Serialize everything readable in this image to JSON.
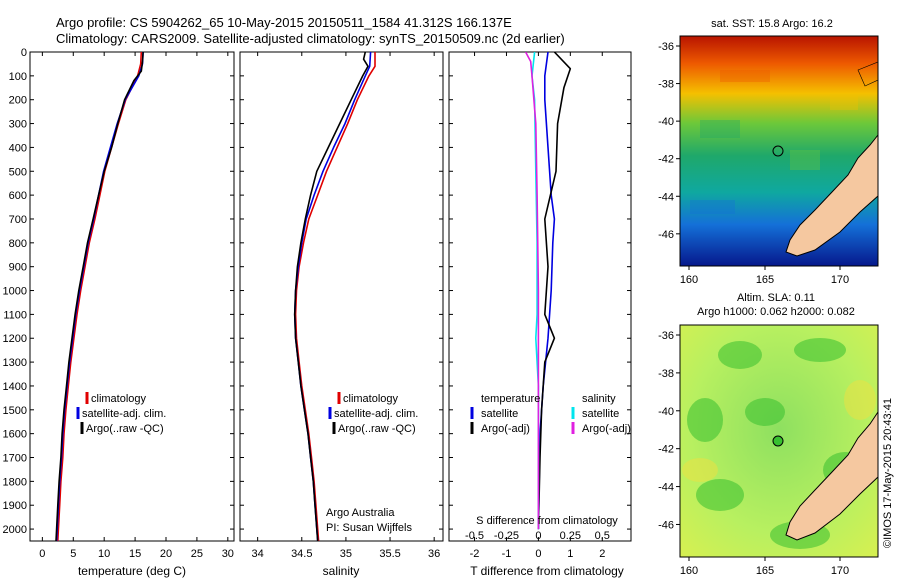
{
  "header": {
    "title_line1": "Argo profile: CS 5904262_65 10-May-2015 20150511_1584 41.312S 166.137E",
    "title_line2": "Climatology: CARS2009. Satellite-adjusted climatology: synTS_20150509.nc (2d earlier)"
  },
  "colors": {
    "climatology": "#e00000",
    "satellite": "#0000e0",
    "argo": "#000000",
    "sal_satellite": "#00e5ee",
    "sal_argo": "#e020e0"
  },
  "depth_axis": {
    "range": [
      0,
      2050
    ],
    "ticks": [
      "0",
      "100",
      "200",
      "300",
      "400",
      "500",
      "600",
      "700",
      "800",
      "900",
      "1000",
      "1100",
      "1200",
      "1300",
      "1400",
      "1500",
      "1600",
      "1700",
      "1800",
      "1900",
      "2000"
    ]
  },
  "panel_temp": {
    "xlabel": "temperature (deg C)",
    "ticks": [
      "0",
      "5",
      "10",
      "15",
      "20",
      "25",
      "30"
    ],
    "legend": [
      "climatology",
      "satellite-adj. clim.",
      "Argo(..raw -QC)"
    ]
  },
  "panel_sal": {
    "xlabel": "salinity",
    "ticks": [
      "34",
      "34.5",
      "35",
      "35.5",
      "36"
    ],
    "legend": [
      "climatology",
      "satellite-adj. clim.",
      "Argo(..raw -QC)"
    ],
    "note1": "Argo Australia",
    "note2": "PI: Susan Wijffels"
  },
  "panel_diff": {
    "top_label": "S difference from climatology",
    "s_ticks": [
      "-0.5",
      "-0.25",
      "0",
      "0.25",
      "0.5"
    ],
    "bottom_label": "T difference from climatology",
    "t_ticks": [
      "-2",
      "-1",
      "0",
      "1",
      "2"
    ],
    "legend_temp_title": "temperature",
    "legend_temp": [
      "satellite",
      "Argo(-adj)"
    ],
    "legend_sal_title": "salinity",
    "legend_sal": [
      "satellite",
      "Argo(-adj)"
    ]
  },
  "map_sst": {
    "title": "sat. SST: 15.8 Argo: 16.2",
    "lat_ticks": [
      "-36",
      "-38",
      "-40",
      "-42",
      "-44",
      "-46"
    ],
    "lon_ticks": [
      "160",
      "165",
      "170"
    ]
  },
  "map_sla": {
    "title1": "Altim. SLA: 0.11",
    "title2": "Argo h1000: 0.062 h2000: 0.082",
    "lat_ticks": [
      "-36",
      "-38",
      "-40",
      "-42",
      "-44",
      "-46"
    ],
    "lon_ticks": [
      "160",
      "165",
      "170"
    ]
  },
  "credit": "©IMOS 17-May-2015 20:43:41",
  "chart_data": [
    {
      "type": "line",
      "title": "",
      "xlabel": "temperature (deg C)",
      "ylabel": "",
      "xlim": [
        -2,
        31
      ],
      "ylim": [
        2050,
        0
      ],
      "series": [
        {
          "name": "climatology",
          "points": [
            [
              16,
              0
            ],
            [
              15.9,
              50
            ],
            [
              15.4,
              100
            ],
            [
              13.5,
              200
            ],
            [
              12.3,
              300
            ],
            [
              11.2,
              400
            ],
            [
              10.1,
              500
            ],
            [
              9.3,
              600
            ],
            [
              8.5,
              700
            ],
            [
              7.6,
              800
            ],
            [
              6.9,
              900
            ],
            [
              6.2,
              1000
            ],
            [
              5.6,
              1100
            ],
            [
              5.1,
              1200
            ],
            [
              4.6,
              1300
            ],
            [
              4.2,
              1400
            ],
            [
              3.8,
              1500
            ],
            [
              3.5,
              1600
            ],
            [
              3.3,
              1700
            ],
            [
              3.0,
              1800
            ],
            [
              2.8,
              1900
            ],
            [
              2.6,
              2000
            ],
            [
              2.5,
              2050
            ]
          ]
        },
        {
          "name": "satellite-adj. clim.",
          "points": [
            [
              16.3,
              0
            ],
            [
              16.2,
              50
            ],
            [
              15.6,
              100
            ],
            [
              13.4,
              200
            ],
            [
              12.1,
              300
            ],
            [
              11.0,
              400
            ],
            [
              9.9,
              500
            ],
            [
              9.1,
              600
            ],
            [
              8.3,
              700
            ],
            [
              7.4,
              800
            ],
            [
              6.7,
              900
            ],
            [
              6.0,
              1000
            ],
            [
              5.4,
              1100
            ],
            [
              4.9,
              1200
            ],
            [
              4.4,
              1300
            ],
            [
              4.0,
              1400
            ],
            [
              3.6,
              1500
            ],
            [
              3.3,
              1600
            ],
            [
              3.1,
              1700
            ],
            [
              2.8,
              1800
            ],
            [
              2.6,
              1900
            ],
            [
              2.4,
              2000
            ],
            [
              2.3,
              2050
            ]
          ]
        },
        {
          "name": "Argo(..raw -QC)",
          "points": [
            [
              16.3,
              0
            ],
            [
              16.2,
              40
            ],
            [
              16.0,
              80
            ],
            [
              14.8,
              120
            ],
            [
              13.3,
              200
            ],
            [
              12.2,
              300
            ],
            [
              11.2,
              400
            ],
            [
              10.0,
              500
            ],
            [
              9.1,
              600
            ],
            [
              8.2,
              700
            ],
            [
              7.3,
              800
            ],
            [
              6.6,
              900
            ],
            [
              5.9,
              1000
            ],
            [
              5.3,
              1100
            ],
            [
              4.8,
              1200
            ],
            [
              4.3,
              1300
            ],
            [
              3.9,
              1400
            ],
            [
              3.5,
              1500
            ],
            [
              3.2,
              1600
            ],
            [
              3.0,
              1700
            ],
            [
              2.7,
              1800
            ],
            [
              2.5,
              1900
            ],
            [
              2.3,
              2000
            ],
            [
              2.2,
              2050
            ]
          ]
        }
      ]
    },
    {
      "type": "line",
      "title": "",
      "xlabel": "salinity",
      "ylabel": "",
      "xlim": [
        33.8,
        36.1
      ],
      "ylim": [
        2050,
        0
      ],
      "series": [
        {
          "name": "climatology",
          "points": [
            [
              35.33,
              0
            ],
            [
              35.33,
              60
            ],
            [
              35.26,
              100
            ],
            [
              35.13,
              200
            ],
            [
              35.02,
              300
            ],
            [
              34.9,
              400
            ],
            [
              34.78,
              500
            ],
            [
              34.68,
              600
            ],
            [
              34.58,
              700
            ],
            [
              34.52,
              800
            ],
            [
              34.47,
              900
            ],
            [
              34.44,
              1000
            ],
            [
              34.43,
              1100
            ],
            [
              34.44,
              1200
            ],
            [
              34.47,
              1300
            ],
            [
              34.5,
              1400
            ],
            [
              34.54,
              1500
            ],
            [
              34.58,
              1600
            ],
            [
              34.61,
              1700
            ],
            [
              34.64,
              1800
            ],
            [
              34.66,
              1900
            ],
            [
              34.68,
              2000
            ],
            [
              34.69,
              2050
            ]
          ]
        },
        {
          "name": "satellite-adj. clim.",
          "points": [
            [
              35.28,
              0
            ],
            [
              35.27,
              60
            ],
            [
              35.22,
              100
            ],
            [
              35.1,
              200
            ],
            [
              34.99,
              300
            ],
            [
              34.86,
              400
            ],
            [
              34.74,
              500
            ],
            [
              34.64,
              600
            ],
            [
              34.55,
              700
            ],
            [
              34.5,
              800
            ],
            [
              34.46,
              900
            ],
            [
              34.43,
              1000
            ],
            [
              34.42,
              1100
            ],
            [
              34.43,
              1200
            ],
            [
              34.46,
              1300
            ],
            [
              34.49,
              1400
            ],
            [
              34.53,
              1500
            ],
            [
              34.57,
              1600
            ],
            [
              34.6,
              1700
            ],
            [
              34.63,
              1800
            ],
            [
              34.65,
              1900
            ],
            [
              34.67,
              2000
            ],
            [
              34.68,
              2050
            ]
          ]
        },
        {
          "name": "Argo(..raw -QC)",
          "points": [
            [
              35.22,
              0
            ],
            [
              35.2,
              30
            ],
            [
              35.25,
              60
            ],
            [
              35.19,
              100
            ],
            [
              35.06,
              200
            ],
            [
              34.93,
              300
            ],
            [
              34.8,
              400
            ],
            [
              34.67,
              500
            ],
            [
              34.6,
              600
            ],
            [
              34.54,
              700
            ],
            [
              34.49,
              800
            ],
            [
              34.45,
              900
            ],
            [
              34.43,
              1000
            ],
            [
              34.42,
              1100
            ],
            [
              34.43,
              1200
            ],
            [
              34.46,
              1300
            ],
            [
              34.49,
              1400
            ],
            [
              34.53,
              1500
            ],
            [
              34.57,
              1600
            ],
            [
              34.6,
              1700
            ],
            [
              34.63,
              1800
            ],
            [
              34.65,
              1900
            ],
            [
              34.67,
              2000
            ],
            [
              34.68,
              2050
            ]
          ]
        }
      ]
    },
    {
      "type": "line",
      "title": "",
      "xlabel": "T difference from climatology",
      "x2label": "S difference from climatology",
      "ylabel": "",
      "xlim": [
        -2.8,
        2.9
      ],
      "ylim": [
        2050,
        0
      ],
      "series": [
        {
          "name": "temperature satellite",
          "axis": "T",
          "points": [
            [
              0.3,
              0
            ],
            [
              0.2,
              100
            ],
            [
              0.2,
              200
            ],
            [
              0.3,
              400
            ],
            [
              0.4,
              600
            ],
            [
              0.5,
              700
            ],
            [
              0.45,
              800
            ],
            [
              0.4,
              1000
            ],
            [
              0.3,
              1200
            ],
            [
              0.15,
              1400
            ],
            [
              0.05,
              1600
            ],
            [
              0.0,
              2000
            ]
          ]
        },
        {
          "name": "temperature Argo(-adj)",
          "axis": "T",
          "points": [
            [
              0.5,
              0
            ],
            [
              1.0,
              70
            ],
            [
              0.8,
              150
            ],
            [
              0.6,
              300
            ],
            [
              0.55,
              500
            ],
            [
              0.2,
              700
            ],
            [
              0.3,
              900
            ],
            [
              0.2,
              1100
            ],
            [
              0.5,
              1200
            ],
            [
              0.2,
              1300
            ],
            [
              0.1,
              1500
            ],
            [
              0.05,
              1700
            ],
            [
              0.0,
              2000
            ]
          ]
        },
        {
          "name": "salinity satellite",
          "axis": "S",
          "points": [
            [
              -0.03,
              0
            ],
            [
              -0.05,
              100
            ],
            [
              -0.03,
              200
            ],
            [
              -0.02,
              500
            ],
            [
              -0.01,
              800
            ],
            [
              -0.01,
              1100
            ],
            [
              -0.02,
              1200
            ],
            [
              0.0,
              1400
            ],
            [
              0.0,
              2000
            ]
          ]
        },
        {
          "name": "salinity Argo(-adj)",
          "axis": "S",
          "points": [
            [
              -0.1,
              0
            ],
            [
              -0.06,
              40
            ],
            [
              -0.05,
              100
            ],
            [
              -0.02,
              300
            ],
            [
              -0.01,
              600
            ],
            [
              0.0,
              1000
            ],
            [
              0.0,
              2000
            ]
          ]
        }
      ]
    }
  ]
}
